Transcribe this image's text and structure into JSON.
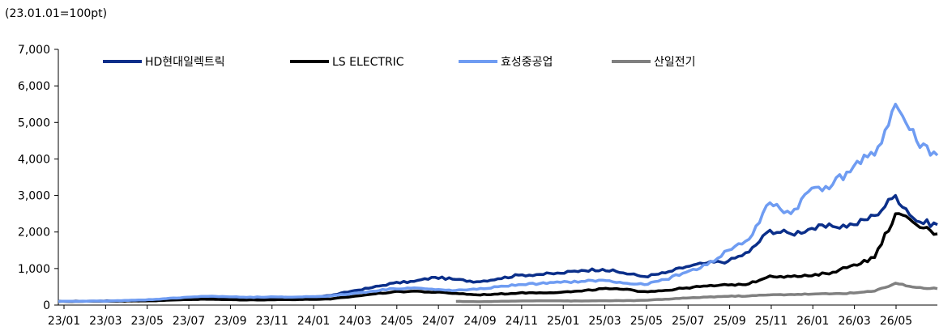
{
  "unit_note": "(23.01.01=100pt)",
  "chart_data": {
    "type": "line",
    "title": "",
    "xlabel": "",
    "ylabel": "",
    "ylim": [
      0,
      7000
    ],
    "yticks": [
      0,
      1000,
      2000,
      3000,
      4000,
      5000,
      6000,
      7000
    ],
    "ytick_labels": [
      "0",
      "1,000",
      "2,000",
      "3,000",
      "4,000",
      "5,000",
      "6,000",
      "7,000"
    ],
    "xtick_labels": [
      "23/01",
      "23/03",
      "23/05",
      "23/07",
      "23/09",
      "23/11",
      "24/01",
      "24/03",
      "24/05",
      "24/07",
      "24/09",
      "24/11",
      "25/01",
      "25/03",
      "25/05",
      "25/07",
      "25/09",
      "25/11",
      "26/01",
      "26/03",
      "26/05"
    ],
    "grid": false,
    "legend_position": "top",
    "x": [
      "23/01",
      "23/02",
      "23/03",
      "23/04",
      "23/05",
      "23/06",
      "23/07",
      "23/08",
      "23/09",
      "23/10",
      "23/11",
      "23/12",
      "24/01",
      "24/02",
      "24/03",
      "24/04",
      "24/05",
      "24/06",
      "24/07",
      "24/08",
      "24/09",
      "24/10",
      "24/11",
      "24/12",
      "25/01",
      "25/02",
      "25/03",
      "25/04",
      "25/05",
      "25/06",
      "25/07",
      "25/08",
      "25/09",
      "25/10",
      "25/11",
      "25/12",
      "26/01",
      "26/02",
      "26/03",
      "26/04",
      "26/05",
      "26/06",
      "26/07"
    ],
    "series": [
      {
        "name": "HD현대일렉트릭",
        "color": "#0b2f8a",
        "values": [
          100,
          105,
          110,
          115,
          125,
          140,
          170,
          210,
          200,
          190,
          200,
          210,
          220,
          260,
          380,
          480,
          600,
          650,
          760,
          700,
          640,
          720,
          820,
          840,
          870,
          950,
          980,
          880,
          780,
          880,
          1050,
          1150,
          1200,
          1450,
          2050,
          1950,
          2100,
          2150,
          2200,
          2450,
          3000,
          2300,
          2200
        ]
      },
      {
        "name": "LS ELECTRIC",
        "color": "#000000",
        "values": [
          100,
          100,
          105,
          110,
          115,
          125,
          150,
          160,
          150,
          140,
          145,
          150,
          155,
          165,
          230,
          300,
          360,
          380,
          350,
          320,
          280,
          300,
          330,
          340,
          350,
          380,
          450,
          430,
          370,
          400,
          470,
          520,
          550,
          580,
          800,
          780,
          800,
          900,
          1100,
          1300,
          2500,
          2200,
          1950
        ]
      },
      {
        "name": "효성중공업",
        "color": "#6f9cf2",
        "values": [
          100,
          105,
          110,
          120,
          140,
          170,
          210,
          240,
          230,
          210,
          220,
          215,
          230,
          250,
          310,
          380,
          450,
          470,
          420,
          400,
          430,
          500,
          560,
          590,
          620,
          650,
          680,
          600,
          560,
          700,
          900,
          1100,
          1500,
          1800,
          2800,
          2500,
          3200,
          3300,
          3800,
          4100,
          5500,
          4500,
          4100
        ]
      },
      {
        "name": "산일전기",
        "color": "#808080",
        "start": "24/08",
        "values": [
          null,
          null,
          null,
          null,
          null,
          null,
          null,
          null,
          null,
          null,
          null,
          null,
          null,
          null,
          null,
          null,
          null,
          null,
          null,
          100,
          90,
          100,
          110,
          120,
          115,
          110,
          120,
          120,
          130,
          160,
          190,
          220,
          240,
          250,
          280,
          290,
          300,
          310,
          330,
          380,
          600,
          480,
          450
        ]
      }
    ]
  }
}
